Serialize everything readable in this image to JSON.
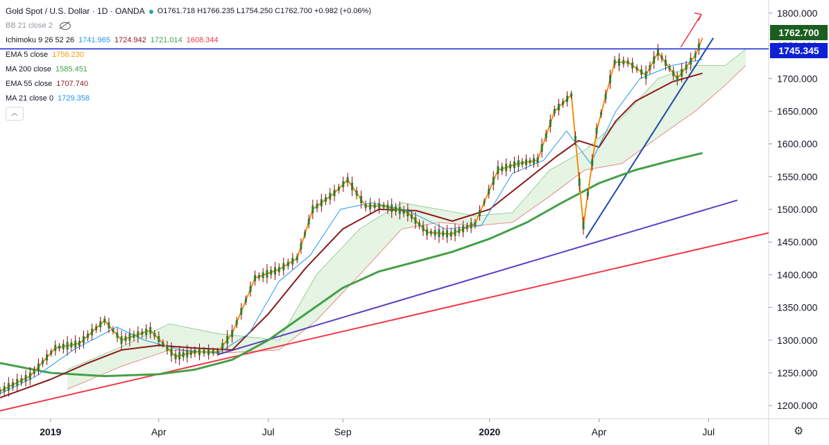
{
  "header": {
    "symbol": "Gold Spot / U.S. Dollar · 1D · OANDA",
    "ohlc": "O1761.718  H1766.235  L1754.250  C1762.700  +0.982 (+0.06%)"
  },
  "indicators": {
    "bb": {
      "name": "BB 21 close 2"
    },
    "ichimoku": {
      "name": "Ichimoku 9 26 52 26",
      "v1": "1741.965",
      "v2": "1724.942",
      "v3": "1721.014",
      "v4": "1608.344"
    },
    "ema5": {
      "name": "EMA 5 close",
      "value": "1756.230"
    },
    "ma200": {
      "name": "MA 200 close",
      "value": "1585.451"
    },
    "ema55": {
      "name": "EMA 55 close",
      "value": "1707.740"
    },
    "ma21": {
      "name": "MA 21 close 0",
      "value": "1729.358"
    }
  },
  "price_labels": {
    "last": "1762.700",
    "line": "1745.345"
  },
  "colors": {
    "ema5": "#ff9800",
    "ma200": "#43a047",
    "ema55": "#8b1a1a",
    "ma21": "#2196f3",
    "candle": "#8b0000",
    "red_trend": "#f23645",
    "purple_trend": "#5b3cc4",
    "blue_trend": "#1a48a8",
    "hline": "#0d20d4",
    "cloud": "#e3f3e0"
  },
  "chart_data": {
    "type": "line",
    "title": "Gold Spot / U.S. Dollar",
    "ylim": [
      1180,
      1820
    ],
    "xlim": [
      "2018-11-20",
      "2020-08-20"
    ],
    "y_ticks": [
      "1200.000",
      "1250.000",
      "1300.000",
      "1350.000",
      "1400.000",
      "1450.000",
      "1500.000",
      "1550.000",
      "1600.000",
      "1650.000",
      "1700.000",
      "1750.000",
      "1800.000"
    ],
    "x_ticks": [
      {
        "label": "2019",
        "date": "2019-01-01",
        "bold": true
      },
      {
        "label": "Apr",
        "date": "2019-04-01",
        "bold": false
      },
      {
        "label": "Jul",
        "date": "2019-07-01",
        "bold": false
      },
      {
        "label": "Sep",
        "date": "2019-09-01",
        "bold": false
      },
      {
        "label": "2020",
        "date": "2020-01-01",
        "bold": true
      },
      {
        "label": "Apr",
        "date": "2020-04-01",
        "bold": false
      },
      {
        "label": "Jul",
        "date": "2020-07-01",
        "bold": false
      }
    ],
    "series": [
      {
        "key": "price",
        "points": [
          [
            "2018-11-20",
            1222
          ],
          [
            "2018-12-15",
            1245
          ],
          [
            "2019-01-05",
            1288
          ],
          [
            "2019-01-25",
            1295
          ],
          [
            "2019-02-15",
            1330
          ],
          [
            "2019-03-01",
            1300
          ],
          [
            "2019-03-25",
            1315
          ],
          [
            "2019-04-15",
            1275
          ],
          [
            "2019-05-01",
            1282
          ],
          [
            "2019-05-20",
            1282
          ],
          [
            "2019-06-01",
            1310
          ],
          [
            "2019-06-20",
            1395
          ],
          [
            "2019-07-10",
            1408
          ],
          [
            "2019-07-25",
            1425
          ],
          [
            "2019-08-07",
            1500
          ],
          [
            "2019-08-25",
            1525
          ],
          [
            "2019-09-05",
            1545
          ],
          [
            "2019-09-20",
            1505
          ],
          [
            "2019-10-05",
            1505
          ],
          [
            "2019-10-25",
            1495
          ],
          [
            "2019-11-10",
            1465
          ],
          [
            "2019-11-30",
            1462
          ],
          [
            "2019-12-20",
            1478
          ],
          [
            "2020-01-08",
            1560
          ],
          [
            "2020-01-25",
            1570
          ],
          [
            "2020-02-10",
            1575
          ],
          [
            "2020-02-24",
            1650
          ],
          [
            "2020-03-09",
            1675
          ],
          [
            "2020-03-19",
            1475
          ],
          [
            "2020-03-30",
            1620
          ],
          [
            "2020-04-14",
            1725
          ],
          [
            "2020-04-25",
            1725
          ],
          [
            "2020-05-10",
            1705
          ],
          [
            "2020-05-20",
            1740
          ],
          [
            "2020-06-05",
            1700
          ],
          [
            "2020-06-20",
            1735
          ],
          [
            "2020-06-26",
            1762
          ]
        ]
      },
      {
        "key": "ma200",
        "points": [
          [
            "2018-11-20",
            1265
          ],
          [
            "2019-01-01",
            1250
          ],
          [
            "2019-02-15",
            1245
          ],
          [
            "2019-04-01",
            1248
          ],
          [
            "2019-05-01",
            1255
          ],
          [
            "2019-06-01",
            1270
          ],
          [
            "2019-07-01",
            1300
          ],
          [
            "2019-08-01",
            1340
          ],
          [
            "2019-09-01",
            1380
          ],
          [
            "2019-10-01",
            1405
          ],
          [
            "2019-11-01",
            1420
          ],
          [
            "2019-12-01",
            1435
          ],
          [
            "2020-01-01",
            1455
          ],
          [
            "2020-02-01",
            1480
          ],
          [
            "2020-03-01",
            1510
          ],
          [
            "2020-04-01",
            1540
          ],
          [
            "2020-05-01",
            1560
          ],
          [
            "2020-06-01",
            1575
          ],
          [
            "2020-06-26",
            1586
          ]
        ]
      },
      {
        "key": "ema55",
        "points": [
          [
            "2018-11-20",
            1212
          ],
          [
            "2019-01-01",
            1240
          ],
          [
            "2019-02-01",
            1265
          ],
          [
            "2019-03-01",
            1285
          ],
          [
            "2019-04-01",
            1292
          ],
          [
            "2019-05-01",
            1288
          ],
          [
            "2019-06-01",
            1285
          ],
          [
            "2019-07-01",
            1340
          ],
          [
            "2019-08-01",
            1410
          ],
          [
            "2019-09-01",
            1470
          ],
          [
            "2019-10-01",
            1500
          ],
          [
            "2019-11-01",
            1498
          ],
          [
            "2019-12-01",
            1482
          ],
          [
            "2020-01-01",
            1500
          ],
          [
            "2020-02-01",
            1545
          ],
          [
            "2020-02-25",
            1580
          ],
          [
            "2020-03-15",
            1605
          ],
          [
            "2020-04-01",
            1595
          ],
          [
            "2020-04-15",
            1635
          ],
          [
            "2020-05-01",
            1665
          ],
          [
            "2020-06-01",
            1695
          ],
          [
            "2020-06-26",
            1708
          ]
        ]
      },
      {
        "key": "ma21",
        "points": [
          [
            "2018-11-20",
            1218
          ],
          [
            "2018-12-20",
            1245
          ],
          [
            "2019-01-20",
            1285
          ],
          [
            "2019-02-25",
            1320
          ],
          [
            "2019-03-20",
            1300
          ],
          [
            "2019-04-20",
            1285
          ],
          [
            "2019-05-20",
            1280
          ],
          [
            "2019-06-15",
            1310
          ],
          [
            "2019-07-10",
            1390
          ],
          [
            "2019-08-05",
            1430
          ],
          [
            "2019-08-30",
            1500
          ],
          [
            "2019-09-25",
            1510
          ],
          [
            "2019-10-25",
            1498
          ],
          [
            "2019-11-25",
            1470
          ],
          [
            "2019-12-25",
            1475
          ],
          [
            "2020-01-20",
            1555
          ],
          [
            "2020-02-15",
            1575
          ],
          [
            "2020-03-05",
            1620
          ],
          [
            "2020-03-25",
            1570
          ],
          [
            "2020-04-15",
            1650
          ],
          [
            "2020-05-05",
            1700
          ],
          [
            "2020-06-01",
            1720
          ],
          [
            "2020-06-26",
            1729
          ]
        ]
      }
    ],
    "cloud": {
      "upper": [
        [
          "2019-01-15",
          1255
        ],
        [
          "2019-03-01",
          1290
        ],
        [
          "2019-04-10",
          1325
        ],
        [
          "2019-05-20",
          1310
        ],
        [
          "2019-07-10",
          1300
        ],
        [
          "2019-08-10",
          1400
        ],
        [
          "2019-09-15",
          1470
        ],
        [
          "2019-10-20",
          1510
        ],
        [
          "2019-11-20",
          1500
        ],
        [
          "2019-12-20",
          1490
        ],
        [
          "2020-01-20",
          1495
        ],
        [
          "2020-02-20",
          1560
        ],
        [
          "2020-03-20",
          1590
        ],
        [
          "2020-04-20",
          1640
        ],
        [
          "2020-05-20",
          1700
        ],
        [
          "2020-06-20",
          1720
        ],
        [
          "2020-07-15",
          1720
        ],
        [
          "2020-08-01",
          1745
        ]
      ],
      "lower": [
        [
          "2019-01-15",
          1225
        ],
        [
          "2019-03-01",
          1260
        ],
        [
          "2019-04-10",
          1285
        ],
        [
          "2019-05-20",
          1280
        ],
        [
          "2019-07-10",
          1285
        ],
        [
          "2019-08-10",
          1330
        ],
        [
          "2019-09-15",
          1400
        ],
        [
          "2019-10-20",
          1470
        ],
        [
          "2019-11-20",
          1480
        ],
        [
          "2019-12-20",
          1475
        ],
        [
          "2020-01-20",
          1480
        ],
        [
          "2020-02-20",
          1520
        ],
        [
          "2020-03-20",
          1560
        ],
        [
          "2020-04-20",
          1570
        ],
        [
          "2020-05-20",
          1610
        ],
        [
          "2020-06-20",
          1650
        ],
        [
          "2020-07-15",
          1690
        ],
        [
          "2020-08-01",
          1720
        ]
      ]
    },
    "trendlines": [
      {
        "key": "red_trend",
        "from": [
          "2018-11-20",
          1192
        ],
        "to": [
          "2020-08-20",
          1464
        ]
      },
      {
        "key": "purple_trend",
        "from": [
          "2019-05-20",
          1278
        ],
        "to": [
          "2020-07-25",
          1514
        ]
      },
      {
        "key": "blue_trend",
        "from": [
          "2020-03-21",
          1456
        ],
        "to": [
          "2020-07-05",
          1762
        ]
      }
    ],
    "hline": 1745.345,
    "grid": false
  }
}
